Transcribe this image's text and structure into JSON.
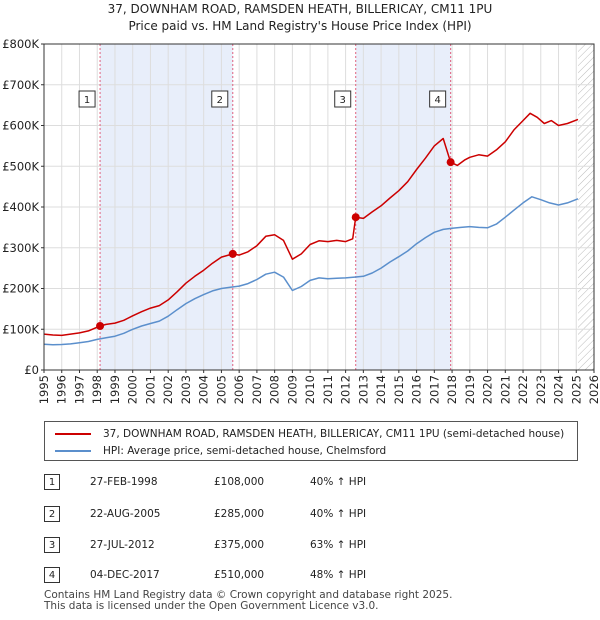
{
  "chart_data": {
    "type": "line",
    "title": "37, DOWNHAM ROAD, RAMSDEN HEATH, BILLERICAY, CM11 1PU",
    "subtitle": "Price paid vs. HM Land Registry's House Price Index (HPI)",
    "xlim": [
      1995,
      2026
    ],
    "ylim": [
      0,
      800000
    ],
    "x_ticks": [
      1995,
      1996,
      1997,
      1998,
      1999,
      2000,
      2001,
      2002,
      2003,
      2004,
      2005,
      2006,
      2007,
      2008,
      2009,
      2010,
      2011,
      2012,
      2013,
      2014,
      2015,
      2016,
      2017,
      2018,
      2019,
      2020,
      2021,
      2022,
      2023,
      2024,
      2025,
      2026
    ],
    "y_ticks": [
      {
        "value": 0,
        "label": "£0"
      },
      {
        "value": 100000,
        "label": "£100K"
      },
      {
        "value": 200000,
        "label": "£200K"
      },
      {
        "value": 300000,
        "label": "£300K"
      },
      {
        "value": 400000,
        "label": "£400K"
      },
      {
        "value": 500000,
        "label": "£500K"
      },
      {
        "value": 600000,
        "label": "£600K"
      },
      {
        "value": 700000,
        "label": "£700K"
      },
      {
        "value": 800000,
        "label": "£800K"
      }
    ],
    "data_end": 2025.1,
    "shaded_periods": [
      [
        1998.16,
        2005.64
      ],
      [
        2012.57,
        2017.92
      ]
    ],
    "series": [
      {
        "name": "37, DOWNHAM ROAD, RAMSDEN HEATH, BILLERICAY, CM11 1PU (semi-detached house)",
        "color": "#cc0000",
        "points": [
          [
            1995,
            88000
          ],
          [
            1995.5,
            86000
          ],
          [
            1996,
            85000
          ],
          [
            1996.5,
            88000
          ],
          [
            1997,
            91000
          ],
          [
            1997.5,
            96000
          ],
          [
            1998.16,
            108000
          ],
          [
            1998.5,
            112000
          ],
          [
            1999,
            115000
          ],
          [
            1999.5,
            122000
          ],
          [
            2000,
            133000
          ],
          [
            2000.5,
            143000
          ],
          [
            2001,
            152000
          ],
          [
            2001.5,
            158000
          ],
          [
            2002,
            172000
          ],
          [
            2002.5,
            192000
          ],
          [
            2003,
            213000
          ],
          [
            2003.5,
            230000
          ],
          [
            2004,
            245000
          ],
          [
            2004.5,
            262000
          ],
          [
            2005,
            277000
          ],
          [
            2005.64,
            285000
          ],
          [
            2006,
            282000
          ],
          [
            2006.5,
            290000
          ],
          [
            2007,
            305000
          ],
          [
            2007.5,
            328000
          ],
          [
            2008,
            332000
          ],
          [
            2008.5,
            318000
          ],
          [
            2009,
            272000
          ],
          [
            2009.5,
            285000
          ],
          [
            2010,
            308000
          ],
          [
            2010.5,
            317000
          ],
          [
            2011,
            315000
          ],
          [
            2011.5,
            318000
          ],
          [
            2012,
            315000
          ],
          [
            2012.4,
            322000
          ],
          [
            2012.57,
            375000
          ],
          [
            2013,
            372000
          ],
          [
            2013.5,
            388000
          ],
          [
            2014,
            403000
          ],
          [
            2014.5,
            422000
          ],
          [
            2015,
            440000
          ],
          [
            2015.5,
            462000
          ],
          [
            2016,
            492000
          ],
          [
            2016.5,
            520000
          ],
          [
            2017,
            550000
          ],
          [
            2017.5,
            568000
          ],
          [
            2017.92,
            510000
          ],
          [
            2018.3,
            502000
          ],
          [
            2018.7,
            515000
          ],
          [
            2019,
            522000
          ],
          [
            2019.5,
            528000
          ],
          [
            2020,
            525000
          ],
          [
            2020.5,
            540000
          ],
          [
            2021,
            560000
          ],
          [
            2021.5,
            590000
          ],
          [
            2022,
            612000
          ],
          [
            2022.4,
            630000
          ],
          [
            2022.8,
            620000
          ],
          [
            2023.2,
            605000
          ],
          [
            2023.6,
            612000
          ],
          [
            2024,
            600000
          ],
          [
            2024.5,
            605000
          ],
          [
            2025.1,
            615000
          ]
        ]
      },
      {
        "name": "HPI: Average price, semi-detached house, Chelmsford",
        "color": "#5b8fcc",
        "points": [
          [
            1995,
            63000
          ],
          [
            1995.5,
            62000
          ],
          [
            1996,
            62500
          ],
          [
            1996.5,
            64000
          ],
          [
            1997,
            67000
          ],
          [
            1997.5,
            70000
          ],
          [
            1998,
            75000
          ],
          [
            1998.5,
            79000
          ],
          [
            1999,
            83000
          ],
          [
            1999.5,
            90000
          ],
          [
            2000,
            100000
          ],
          [
            2000.5,
            108000
          ],
          [
            2001,
            114000
          ],
          [
            2001.5,
            120000
          ],
          [
            2002,
            132000
          ],
          [
            2002.5,
            148000
          ],
          [
            2003,
            163000
          ],
          [
            2003.5,
            175000
          ],
          [
            2004,
            185000
          ],
          [
            2004.5,
            194000
          ],
          [
            2005,
            200000
          ],
          [
            2005.5,
            203000
          ],
          [
            2006,
            206000
          ],
          [
            2006.5,
            212000
          ],
          [
            2007,
            222000
          ],
          [
            2007.5,
            235000
          ],
          [
            2008,
            240000
          ],
          [
            2008.5,
            228000
          ],
          [
            2009,
            195000
          ],
          [
            2009.5,
            205000
          ],
          [
            2010,
            220000
          ],
          [
            2010.5,
            226000
          ],
          [
            2011,
            224000
          ],
          [
            2011.5,
            225000
          ],
          [
            2012,
            226000
          ],
          [
            2012.5,
            228000
          ],
          [
            2013,
            230000
          ],
          [
            2013.5,
            238000
          ],
          [
            2014,
            250000
          ],
          [
            2014.5,
            265000
          ],
          [
            2015,
            278000
          ],
          [
            2015.5,
            292000
          ],
          [
            2016,
            310000
          ],
          [
            2016.5,
            325000
          ],
          [
            2017,
            338000
          ],
          [
            2017.5,
            345000
          ],
          [
            2018,
            348000
          ],
          [
            2018.5,
            350000
          ],
          [
            2019,
            352000
          ],
          [
            2019.5,
            350000
          ],
          [
            2020,
            349000
          ],
          [
            2020.5,
            358000
          ],
          [
            2021,
            375000
          ],
          [
            2021.5,
            393000
          ],
          [
            2022,
            410000
          ],
          [
            2022.5,
            425000
          ],
          [
            2023,
            418000
          ],
          [
            2023.5,
            410000
          ],
          [
            2024,
            405000
          ],
          [
            2024.5,
            410000
          ],
          [
            2025.1,
            420000
          ]
        ]
      }
    ],
    "sales": [
      {
        "label": "1",
        "x": 1998.16,
        "price": 108000,
        "date": "27-FEB-1998",
        "price_text": "£108,000",
        "hpi": "40% ↑ HPI"
      },
      {
        "label": "2",
        "x": 2005.64,
        "price": 285000,
        "date": "22-AUG-2005",
        "price_text": "£285,000",
        "hpi": "40% ↑ HPI"
      },
      {
        "label": "3",
        "x": 2012.57,
        "price": 375000,
        "date": "27-JUL-2012",
        "price_text": "£375,000",
        "hpi": "63% ↑ HPI"
      },
      {
        "label": "4",
        "x": 2017.92,
        "price": 510000,
        "date": "04-DEC-2017",
        "price_text": "£510,000",
        "hpi": "48% ↑ HPI"
      }
    ]
  },
  "colors": {
    "shade": "#e8eefa",
    "grid": "#dddddd",
    "dash": "#e0607e",
    "property": "#cc0000",
    "hpi": "#5b8fcc"
  },
  "footer": {
    "line1": "Contains HM Land Registry data © Crown copyright and database right 2025.",
    "line2": "This data is licensed under the Open Government Licence v3.0."
  }
}
